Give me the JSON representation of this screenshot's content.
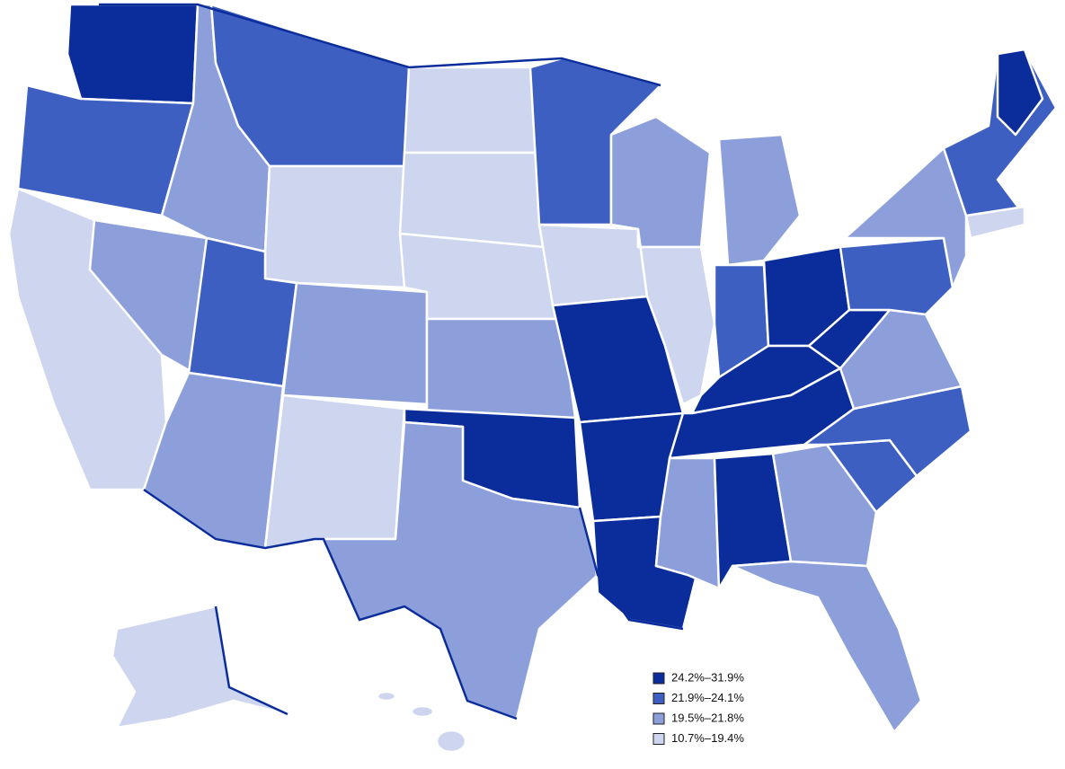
{
  "legend": {
    "items": [
      {
        "label": "24.2%–31.9%",
        "color": "#0b2d9c"
      },
      {
        "label": "21.9%–24.1%",
        "color": "#3d5fc2"
      },
      {
        "label": "19.5%–21.8%",
        "color": "#8c9fdb"
      },
      {
        "label": "10.7%–19.4%",
        "color": "#cdd5ef"
      }
    ]
  }
}
